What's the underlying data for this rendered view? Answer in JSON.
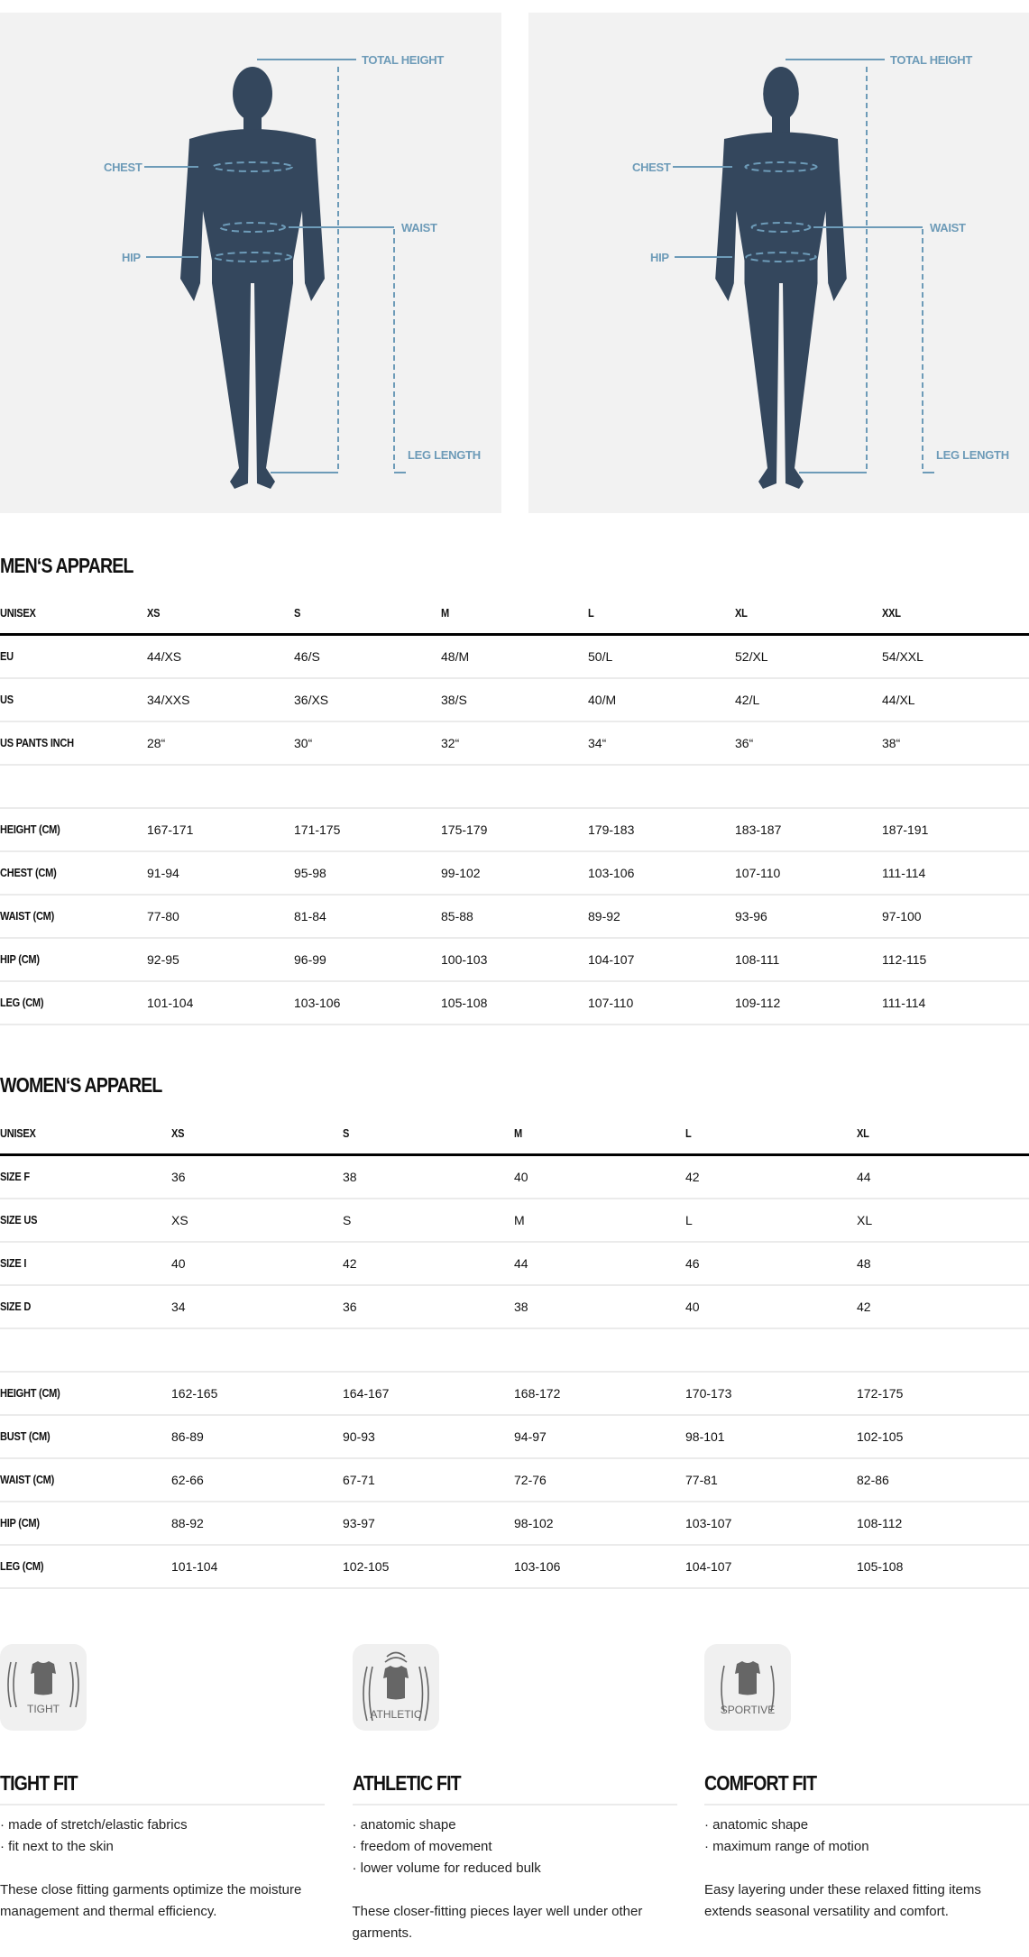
{
  "diagram": {
    "labels": {
      "total_height": "TOTAL HEIGHT",
      "chest": "CHEST",
      "waist": "WAIST",
      "hip": "HIP",
      "leg_length": "LEG LENGTH"
    },
    "figure_color": "#34475d",
    "line_color": "#6d9bb8"
  },
  "men": {
    "title": "MEN‘S APPAREL",
    "header": [
      "UNISEX",
      "XS",
      "S",
      "M",
      "L",
      "XL",
      "XXL"
    ],
    "rows": [
      [
        "EU",
        "44/XS",
        "46/S",
        "48/M",
        "50/L",
        "52/XL",
        "54/XXL"
      ],
      [
        "US",
        "34/XXS",
        "36/XS",
        "38/S",
        "40/M",
        "42/L",
        "44/XL"
      ],
      [
        "US PANTS INCH",
        "28“",
        "30“",
        "32“",
        "34“",
        "36“",
        "38“"
      ],
      [
        "",
        "",
        "",
        "",
        "",
        "",
        ""
      ],
      [
        "HEIGHT (CM)",
        "167-171",
        "171-175",
        "175-179",
        "179-183",
        "183-187",
        "187-191"
      ],
      [
        "CHEST (CM)",
        "91-94",
        "95-98",
        "99-102",
        "103-106",
        "107-110",
        "111-114"
      ],
      [
        "WAIST (CM)",
        "77-80",
        "81-84",
        "85-88",
        "89-92",
        "93-96",
        "97-100"
      ],
      [
        "HIP (CM)",
        "92-95",
        "96-99",
        "100-103",
        "104-107",
        "108-111",
        "112-115"
      ],
      [
        "LEG (CM)",
        "101-104",
        "103-106",
        "105-108",
        "107-110",
        "109-112",
        "111-114"
      ]
    ]
  },
  "women": {
    "title": "WOMEN‘S APPAREL",
    "header": [
      "UNISEX",
      "XS",
      "S",
      "M",
      "L",
      "XL"
    ],
    "rows": [
      [
        "SIZE F",
        "36",
        "38",
        "40",
        "42",
        "44"
      ],
      [
        "SIZE US",
        "XS",
        "S",
        "M",
        "L",
        "XL"
      ],
      [
        "SIZE I",
        "40",
        "42",
        "44",
        "46",
        "48"
      ],
      [
        "SIZE D",
        "34",
        "36",
        "38",
        "40",
        "42"
      ],
      [
        "",
        "",
        "",
        "",
        "",
        ""
      ],
      [
        "HEIGHT (CM)",
        "162-165",
        "164-167",
        "168-172",
        "170-173",
        "172-175"
      ],
      [
        "BUST (CM)",
        "86-89",
        "90-93",
        "94-97",
        "98-101",
        "102-105"
      ],
      [
        "WAIST (CM)",
        "62-66",
        "67-71",
        "72-76",
        "77-81",
        "82-86"
      ],
      [
        "HIP (CM)",
        "88-92",
        "93-97",
        "98-102",
        "103-107",
        "108-112"
      ],
      [
        "LEG (CM)",
        "101-104",
        "102-105",
        "103-106",
        "104-107",
        "105-108"
      ]
    ]
  },
  "fits": [
    {
      "badge": "TIGHT",
      "title": "TIGHT FIT",
      "bullets": [
        "· made of stretch/elastic fabrics",
        "· fit next to the skin"
      ],
      "text": "These close fitting garments optimize the moisture management and thermal efficiency."
    },
    {
      "badge": "ATHLETIC",
      "title": "ATHLETIC FIT",
      "bullets": [
        "· anatomic shape",
        "· freedom of movement",
        "· lower volume for reduced bulk"
      ],
      "text": "These closer-fitting pieces layer well under other garments."
    },
    {
      "badge": "SPORTIVE",
      "title": "COMFORT FIT",
      "bullets": [
        "· anatomic shape",
        "· maximum range of motion"
      ],
      "text": "Easy layering under these relaxed fitting items extends seasonal versatility and comfort."
    }
  ]
}
